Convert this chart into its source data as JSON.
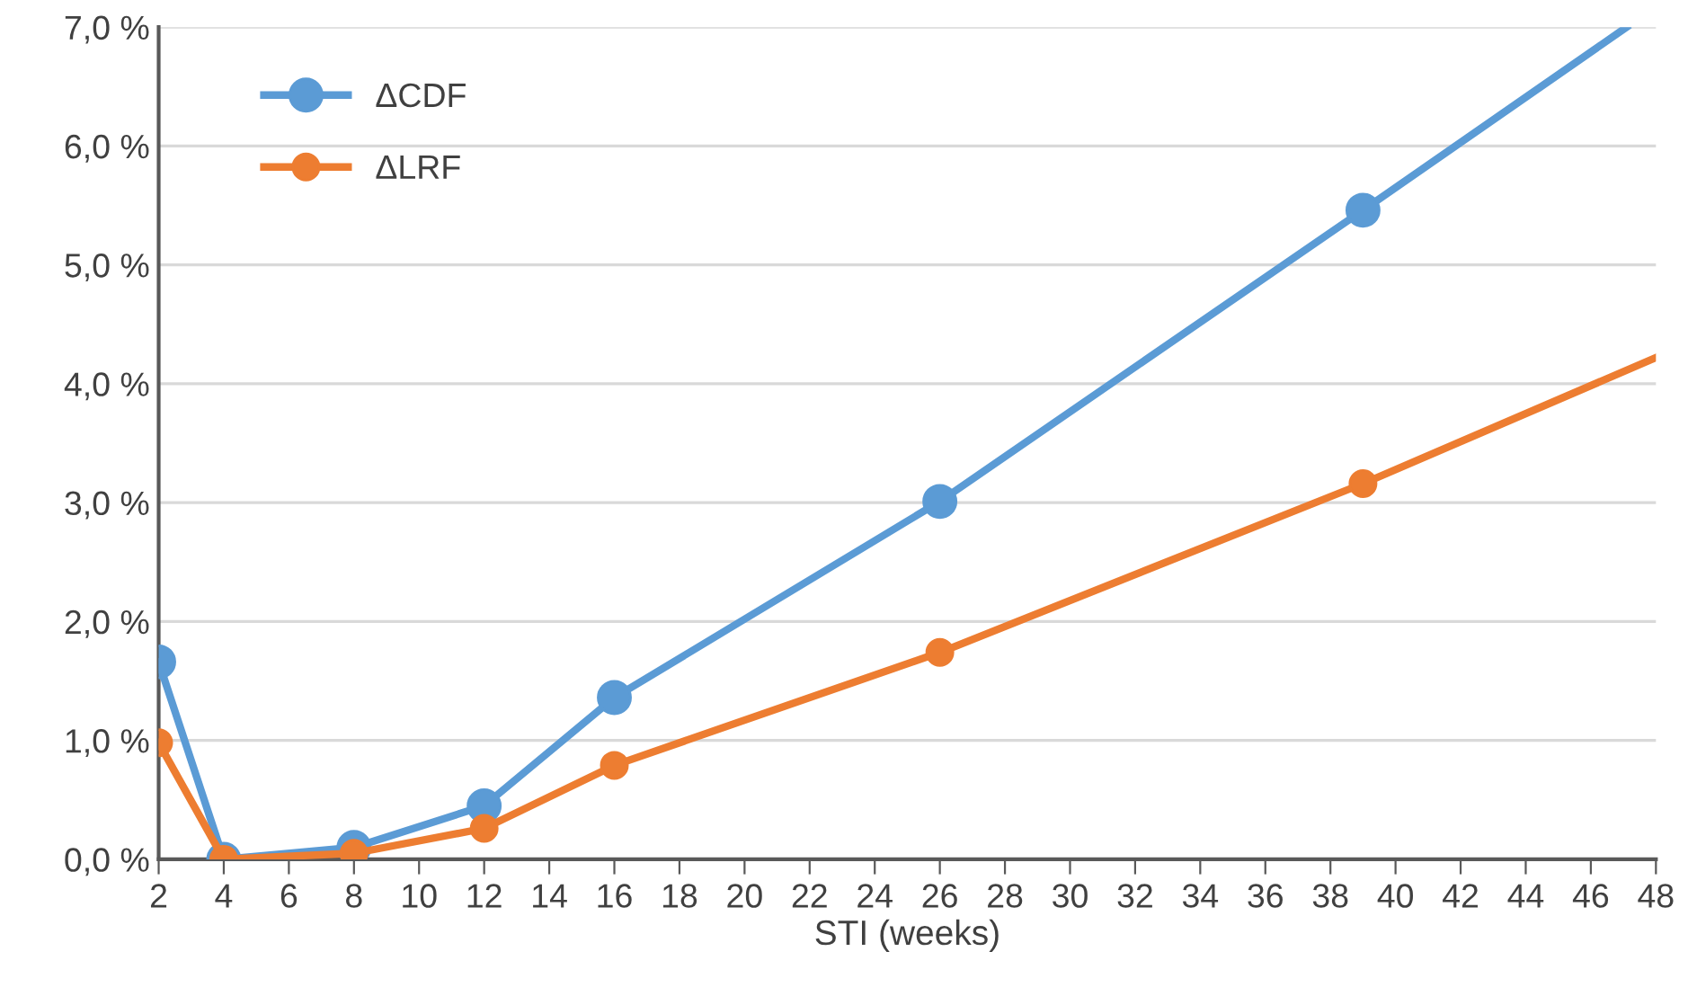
{
  "chart_data": {
    "type": "line",
    "xlabel": "STI (weeks)",
    "x": [
      2,
      4,
      8,
      12,
      16,
      26,
      39,
      48
    ],
    "series": [
      {
        "name": "ΔCDF",
        "color": "#5b9bd5",
        "x": [
          2,
          4,
          8,
          12,
          16,
          26,
          39,
          47.1
        ],
        "values": [
          1.66,
          0,
          0.1,
          0.45,
          1.36,
          3.01,
          5.46,
          7.0
        ]
      },
      {
        "name": "ΔLRF",
        "color": "#ed7d31",
        "values": [
          0.98,
          0,
          0.05,
          0.26,
          0.79,
          1.74,
          3.16,
          4.22
        ]
      }
    ],
    "xlim": [
      2,
      48
    ],
    "xticks": [
      2,
      4,
      6,
      8,
      10,
      12,
      14,
      16,
      18,
      20,
      22,
      24,
      26,
      28,
      30,
      32,
      34,
      36,
      38,
      40,
      42,
      44,
      46,
      48
    ],
    "ylim": [
      0,
      7
    ],
    "yticks": [
      {
        "value": 0,
        "label": "0,0 %"
      },
      {
        "value": 1,
        "label": "1,0 %"
      },
      {
        "value": 2,
        "label": "2,0 %"
      },
      {
        "value": 3,
        "label": "3,0 %"
      },
      {
        "value": 4,
        "label": "4,0 %"
      },
      {
        "value": 5,
        "label": "5,0 %"
      },
      {
        "value": 6,
        "label": "6,0 %"
      },
      {
        "value": 7,
        "label": "7,0 %"
      }
    ],
    "grid": "y",
    "legend": "top left",
    "marker": "circle",
    "line_style": "solid"
  }
}
